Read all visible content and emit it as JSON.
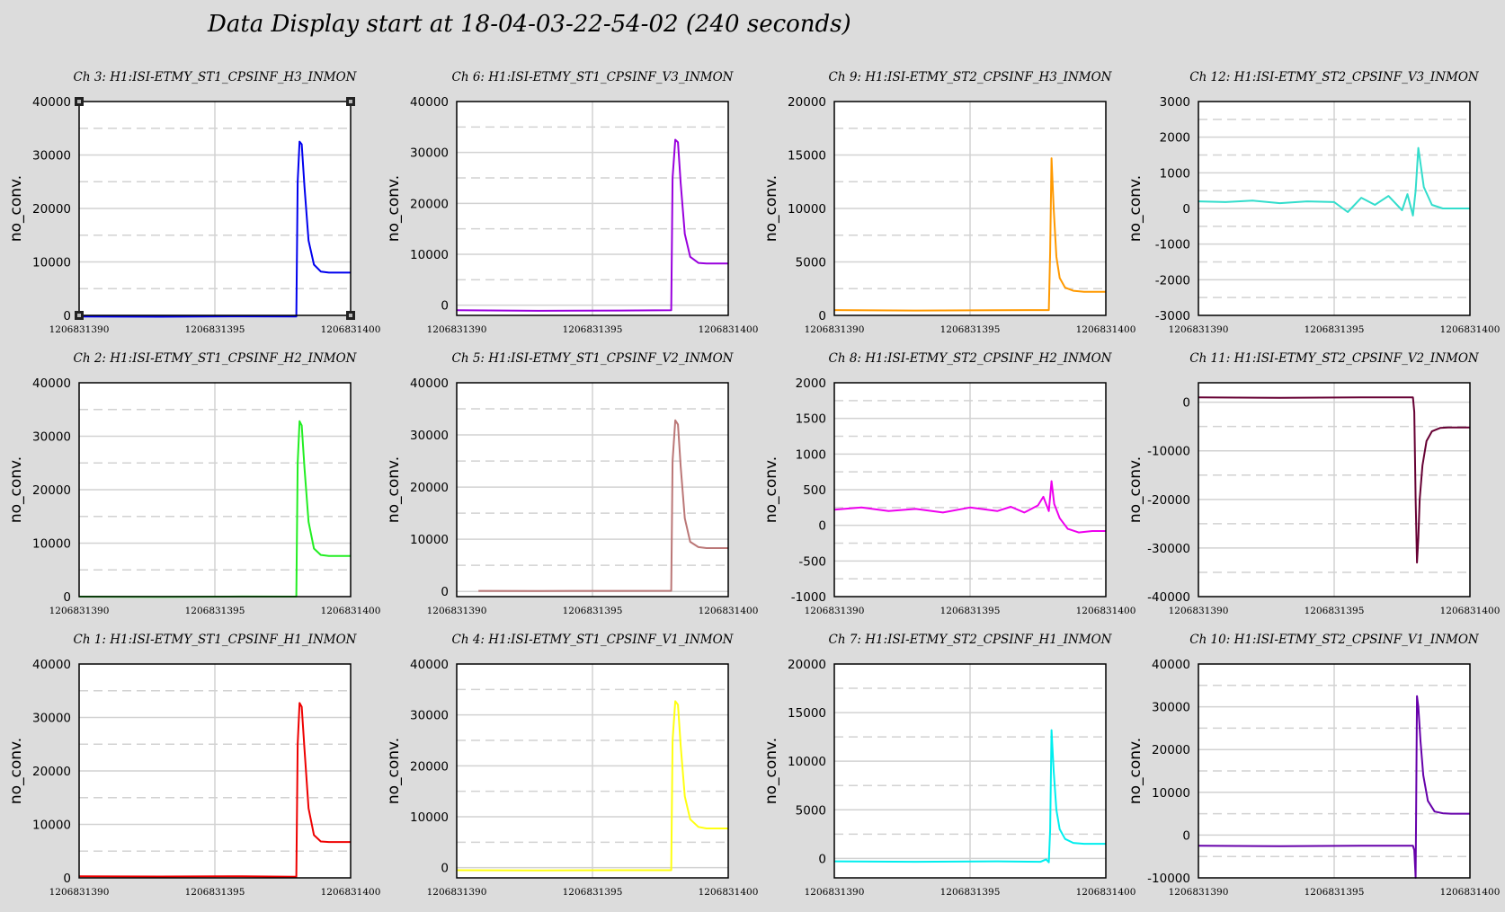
{
  "title": "Data Display start at 18-04-03-22-54-02 (240 seconds)",
  "colors": {
    "background": "#dcdcdc",
    "plot_bg": "#ffffff",
    "grid": "#d2d2d2"
  },
  "chart_data": [
    {
      "type": "line",
      "title": "Ch 3: H1:ISI-ETMY_ST1_CPSINF_H3_INMON",
      "ylabel": "no_conv.",
      "color": "#0000ee",
      "xlim": [
        1206831390,
        1206831400
      ],
      "ylim": [
        0,
        40000
      ],
      "yticks": [
        0,
        10000,
        20000,
        30000,
        40000
      ],
      "xticks": [
        1206831390,
        1206831395,
        1206831400
      ],
      "selected": true,
      "series": [
        {
          "x": [
            1206831390,
            1206831393,
            1206831396,
            1206831398,
            1206831398.05,
            1206831398.12,
            1206831398.2,
            1206831398.3,
            1206831398.45,
            1206831398.65,
            1206831398.9,
            1206831399.2,
            1206831400
          ],
          "y": [
            -200,
            -250,
            -180,
            -200,
            25000,
            32500,
            32000,
            24000,
            14000,
            9500,
            8200,
            8000,
            8000
          ]
        }
      ]
    },
    {
      "type": "line",
      "title": "Ch 6: H1:ISI-ETMY_ST1_CPSINF_V3_INMON",
      "ylabel": "no_conv.",
      "color": "#9900dd",
      "xlim": [
        1206831390,
        1206831400
      ],
      "ylim": [
        -2000,
        40000
      ],
      "yticks": [
        0,
        10000,
        20000,
        30000,
        40000
      ],
      "xticks": [
        1206831390,
        1206831395,
        1206831400
      ],
      "series": [
        {
          "x": [
            1206831390,
            1206831393,
            1206831396,
            1206831397.9,
            1206831397.95,
            1206831398.05,
            1206831398.15,
            1206831398.25,
            1206831398.4,
            1206831398.6,
            1206831398.9,
            1206831399.2,
            1206831400
          ],
          "y": [
            -1000,
            -1100,
            -1050,
            -1000,
            25000,
            32500,
            32000,
            24000,
            14000,
            9500,
            8300,
            8200,
            8200
          ]
        }
      ]
    },
    {
      "type": "line",
      "title": "Ch 9: H1:ISI-ETMY_ST2_CPSINF_H3_INMON",
      "ylabel": "no_conv.",
      "color": "#ff9900",
      "xlim": [
        1206831390,
        1206831400
      ],
      "ylim": [
        0,
        20000
      ],
      "yticks": [
        0,
        5000,
        10000,
        15000,
        20000
      ],
      "xticks": [
        1206831390,
        1206831395,
        1206831400
      ],
      "series": [
        {
          "x": [
            1206831390,
            1206831393,
            1206831396,
            1206831397.9,
            1206831397.95,
            1206831398,
            1206831398.08,
            1206831398.18,
            1206831398.3,
            1206831398.5,
            1206831398.8,
            1206831399.2,
            1206831400
          ],
          "y": [
            500,
            450,
            480,
            500,
            6000,
            14700,
            10000,
            5500,
            3500,
            2600,
            2300,
            2200,
            2200
          ]
        }
      ]
    },
    {
      "type": "line",
      "title": "Ch 12: H1:ISI-ETMY_ST2_CPSINF_V3_INMON",
      "ylabel": "no_conv.",
      "color": "#33ddcc",
      "xlim": [
        1206831390,
        1206831400
      ],
      "ylim": [
        -3000,
        3000
      ],
      "yticks": [
        -3000,
        -2000,
        -1000,
        0,
        1000,
        2000,
        3000
      ],
      "xticks": [
        1206831390,
        1206831395,
        1206831400
      ],
      "series": [
        {
          "x": [
            1206831390,
            1206831391,
            1206831392,
            1206831393,
            1206831394,
            1206831395,
            1206831395.5,
            1206831396,
            1206831396.5,
            1206831397,
            1206831397.5,
            1206831397.7,
            1206831397.9,
            1206831398,
            1206831398.1,
            1206831398.3,
            1206831398.6,
            1206831399,
            1206831400
          ],
          "y": [
            200,
            180,
            220,
            150,
            200,
            180,
            -100,
            300,
            100,
            350,
            -50,
            400,
            -200,
            500,
            1700,
            600,
            100,
            0,
            0
          ]
        }
      ]
    },
    {
      "type": "line",
      "title": "Ch 2: H1:ISI-ETMY_ST1_CPSINF_H2_INMON",
      "ylabel": "no_conv.",
      "color": "#22ee22",
      "xlim": [
        1206831390,
        1206831400
      ],
      "ylim": [
        0,
        40000
      ],
      "yticks": [
        0,
        10000,
        20000,
        30000,
        40000
      ],
      "xticks": [
        1206831390,
        1206831395,
        1206831400
      ],
      "series": [
        {
          "x": [
            1206831390,
            1206831393,
            1206831396,
            1206831398,
            1206831398.05,
            1206831398.12,
            1206831398.2,
            1206831398.3,
            1206831398.45,
            1206831398.65,
            1206831398.9,
            1206831399.2,
            1206831400
          ],
          "y": [
            0,
            -50,
            20,
            0,
            25000,
            32800,
            32000,
            24000,
            14000,
            9000,
            7800,
            7600,
            7600
          ]
        }
      ]
    },
    {
      "type": "line",
      "title": "Ch 5: H1:ISI-ETMY_ST1_CPSINF_V2_INMON",
      "ylabel": "no_conv.",
      "color": "#bb7777",
      "xlim": [
        1206831390,
        1206831400
      ],
      "ylim": [
        -1000,
        40000
      ],
      "yticks": [
        0,
        10000,
        20000,
        30000,
        40000
      ],
      "xticks": [
        1206831390,
        1206831395,
        1206831400
      ],
      "series": [
        {
          "x": [
            1206831390.8,
            1206831393,
            1206831396,
            1206831397.9,
            1206831397.95,
            1206831398.05,
            1206831398.15,
            1206831398.25,
            1206831398.4,
            1206831398.6,
            1206831398.9,
            1206831399.2,
            1206831400
          ],
          "y": [
            100,
            80,
            100,
            120,
            25000,
            32800,
            32000,
            24000,
            14000,
            9500,
            8500,
            8300,
            8300
          ]
        }
      ]
    },
    {
      "type": "line",
      "title": "Ch 8: H1:ISI-ETMY_ST2_CPSINF_H2_INMON",
      "ylabel": "no_conv.",
      "color": "#ee00ee",
      "xlim": [
        1206831390,
        1206831400
      ],
      "ylim": [
        -1000,
        2000
      ],
      "yticks": [
        -1000,
        -500,
        0,
        500,
        1000,
        1500,
        2000
      ],
      "xticks": [
        1206831390,
        1206831395,
        1206831400
      ],
      "series": [
        {
          "x": [
            1206831390,
            1206831391,
            1206831392,
            1206831393,
            1206831394,
            1206831395,
            1206831396,
            1206831396.5,
            1206831397,
            1206831397.5,
            1206831397.7,
            1206831397.9,
            1206831398,
            1206831398.1,
            1206831398.3,
            1206831398.6,
            1206831399,
            1206831399.5,
            1206831400
          ],
          "y": [
            220,
            250,
            200,
            230,
            180,
            250,
            200,
            260,
            180,
            280,
            400,
            200,
            620,
            300,
            100,
            -50,
            -100,
            -80,
            -80
          ]
        }
      ]
    },
    {
      "type": "line",
      "title": "Ch 11: H1:ISI-ETMY_ST2_CPSINF_V2_INMON",
      "ylabel": "no_conv.",
      "color": "#660033",
      "xlim": [
        1206831390,
        1206831400
      ],
      "ylim": [
        -40000,
        4000
      ],
      "yticks": [
        -40000,
        -30000,
        -20000,
        -10000,
        0
      ],
      "xticks": [
        1206831390,
        1206831395,
        1206831400
      ],
      "series": [
        {
          "x": [
            1206831390,
            1206831393,
            1206831396,
            1206831397.9,
            1206831397.95,
            1206831398.0,
            1206831398.05,
            1206831398.1,
            1206831398.15,
            1206831398.25,
            1206831398.4,
            1206831398.6,
            1206831398.9,
            1206831399.2,
            1206831400
          ],
          "y": [
            1000,
            900,
            1000,
            1000,
            -2000,
            -20000,
            -33000,
            -28000,
            -20000,
            -13000,
            -8000,
            -6000,
            -5300,
            -5200,
            -5200
          ]
        }
      ]
    },
    {
      "type": "line",
      "title": "Ch 1: H1:ISI-ETMY_ST1_CPSINF_H1_INMON",
      "ylabel": "no_conv.",
      "color": "#ee0000",
      "xlim": [
        1206831390,
        1206831400
      ],
      "ylim": [
        0,
        40000
      ],
      "yticks": [
        0,
        10000,
        20000,
        30000,
        40000
      ],
      "xticks": [
        1206831390,
        1206831395,
        1206831400
      ],
      "series": [
        {
          "x": [
            1206831390,
            1206831393,
            1206831396,
            1206831398,
            1206831398.05,
            1206831398.12,
            1206831398.2,
            1206831398.3,
            1206831398.45,
            1206831398.65,
            1206831398.9,
            1206831399.2,
            1206831400
          ],
          "y": [
            300,
            250,
            300,
            200,
            25000,
            32700,
            32000,
            24000,
            13000,
            8000,
            6800,
            6700,
            6700
          ]
        }
      ]
    },
    {
      "type": "line",
      "title": "Ch 4: H1:ISI-ETMY_ST1_CPSINF_V1_INMON",
      "ylabel": "no_conv.",
      "color": "#ffff11",
      "xlim": [
        1206831390,
        1206831400
      ],
      "ylim": [
        -2000,
        40000
      ],
      "yticks": [
        0,
        10000,
        20000,
        30000,
        40000
      ],
      "xticks": [
        1206831390,
        1206831395,
        1206831400
      ],
      "series": [
        {
          "x": [
            1206831390,
            1206831393,
            1206831396,
            1206831397.9,
            1206831397.95,
            1206831398.05,
            1206831398.15,
            1206831398.25,
            1206831398.4,
            1206831398.6,
            1206831398.9,
            1206831399.2,
            1206831400
          ],
          "y": [
            -500,
            -550,
            -500,
            -500,
            25000,
            32700,
            32000,
            24000,
            14000,
            9500,
            8000,
            7700,
            7700
          ]
        }
      ]
    },
    {
      "type": "line",
      "title": "Ch 7: H1:ISI-ETMY_ST2_CPSINF_H1_INMON",
      "ylabel": "no_conv.",
      "color": "#00eeee",
      "xlim": [
        1206831390,
        1206831400
      ],
      "ylim": [
        -2000,
        20000
      ],
      "yticks": [
        0,
        5000,
        10000,
        15000,
        20000
      ],
      "xticks": [
        1206831390,
        1206831395,
        1206831400
      ],
      "series": [
        {
          "x": [
            1206831390,
            1206831393,
            1206831396,
            1206831397.6,
            1206831397.8,
            1206831397.9,
            1206831397.95,
            1206831398,
            1206831398.08,
            1206831398.18,
            1206831398.3,
            1206831398.5,
            1206831398.8,
            1206831399.2,
            1206831400
          ],
          "y": [
            -300,
            -350,
            -300,
            -350,
            -100,
            -400,
            3000,
            13200,
            9000,
            5000,
            3000,
            2000,
            1600,
            1500,
            1500
          ]
        }
      ]
    },
    {
      "type": "line",
      "title": "Ch 10: H1:ISI-ETMY_ST2_CPSINF_V1_INMON",
      "ylabel": "no_conv.",
      "color": "#6600aa",
      "xlim": [
        1206831390,
        1206831400
      ],
      "ylim": [
        -10000,
        40000
      ],
      "yticks": [
        -10000,
        0,
        10000,
        20000,
        30000,
        40000
      ],
      "xticks": [
        1206831390,
        1206831395,
        1206831400
      ],
      "series": [
        {
          "x": [
            1206831390,
            1206831393,
            1206831396,
            1206831397.9,
            1206831397.95,
            1206831398.0,
            1206831398.05,
            1206831398.1,
            1206831398.18,
            1206831398.28,
            1206831398.45,
            1206831398.7,
            1206831399.0,
            1206831399.3,
            1206831400
          ],
          "y": [
            -2500,
            -2600,
            -2500,
            -2500,
            -3500,
            -10000,
            32500,
            30000,
            22000,
            14000,
            8000,
            5500,
            5100,
            5000,
            5000
          ]
        }
      ]
    }
  ]
}
